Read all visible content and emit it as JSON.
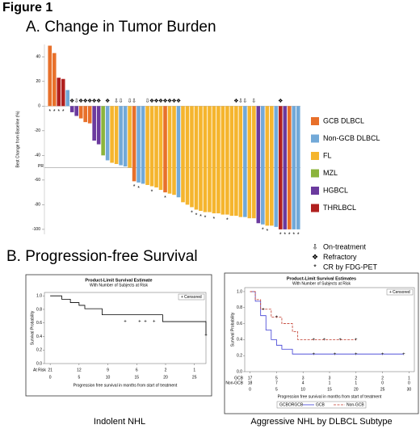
{
  "page": {
    "figure_label": "Figure 1",
    "panel_a": "A. Change in Tumor Burden",
    "panel_b": "B. Progression-free Survival"
  },
  "chart_data": [
    {
      "type": "waterfall",
      "ylabel": "Best Change from Baseline (%)",
      "ylim": [
        -104,
        50
      ],
      "yticks": [
        -100,
        -80,
        -60,
        -40,
        -20,
        0,
        20,
        40
      ],
      "reference_line": {
        "value": -50,
        "label": "PR"
      },
      "legend": [
        {
          "name": "GCB DLBCL",
          "color": "#e8702a"
        },
        {
          "name": "Non-GCB DLBCL",
          "color": "#72a9d8"
        },
        {
          "name": "FL",
          "color": "#f5b52e"
        },
        {
          "name": "MZL",
          "color": "#8cb43c"
        },
        {
          "name": "HGBCL",
          "color": "#6b3a9e"
        },
        {
          "name": "THRLBCL",
          "color": "#b0201f"
        }
      ],
      "marker_types": [
        {
          "name": "On-treatment",
          "symbol": "⇩",
          "color": "#000000"
        },
        {
          "name": "Refractory",
          "symbol": "❖",
          "color": "#000000"
        },
        {
          "name": "CR by FDG-PET",
          "symbol": "*",
          "color": "#d0201c"
        }
      ],
      "values": [
        49,
        43,
        23,
        22,
        13,
        -5,
        -8,
        -10,
        -13,
        -14,
        -28,
        -31,
        -40,
        -44,
        -46,
        -47,
        -48,
        -49,
        -50,
        -61,
        -62,
        -63,
        -64,
        -65,
        -66,
        -68,
        -70,
        -71,
        -72,
        -74,
        -78,
        -80,
        -82,
        -84,
        -85,
        -86,
        -86,
        -87,
        -87,
        -88,
        -88,
        -89,
        -89,
        -90,
        -90,
        -91,
        -91,
        -95,
        -96,
        -97,
        -97,
        -98,
        -100,
        -100,
        -100,
        -100,
        -100
      ],
      "subtypes": [
        "GCB DLBCL",
        "GCB DLBCL",
        "THRLBCL",
        "THRLBCL",
        "Non-GCB DLBCL",
        "HGBCL",
        "HGBCL",
        "GCB DLBCL",
        "GCB DLBCL",
        "GCB DLBCL",
        "HGBCL",
        "HGBCL",
        "MZL",
        "Non-GCB DLBCL",
        "FL",
        "FL",
        "Non-GCB DLBCL",
        "Non-GCB DLBCL",
        "FL",
        "GCB DLBCL",
        "Non-GCB DLBCL",
        "Non-GCB DLBCL",
        "FL",
        "FL",
        "FL",
        "FL",
        "GCB DLBCL",
        "FL",
        "FL",
        "Non-GCB DLBCL",
        "FL",
        "FL",
        "FL",
        "FL",
        "FL",
        "FL",
        "FL",
        "FL",
        "FL",
        "FL",
        "FL",
        "FL",
        "FL",
        "FL",
        "Non-GCB DLBCL",
        "FL",
        "FL",
        "HGBCL",
        "Non-GCB DLBCL",
        "FL",
        "FL",
        "Non-GCB DLBCL",
        "THRLBCL",
        "HGBCL",
        "GCB DLBCL",
        "Non-GCB DLBCL",
        "Non-GCB DLBCL"
      ],
      "markers": [
        [
          "CR by FDG-PET"
        ],
        [
          "CR by FDG-PET"
        ],
        [
          "CR by FDG-PET"
        ],
        [
          "CR by FDG-PET"
        ],
        [],
        [
          "Refractory"
        ],
        [
          "On-treatment"
        ],
        [
          "Refractory"
        ],
        [
          "Refractory"
        ],
        [
          "Refractory"
        ],
        [
          "Refractory"
        ],
        [
          "Refractory"
        ],
        [],
        [
          "Refractory"
        ],
        [],
        [
          "On-treatment"
        ],
        [
          "On-treatment"
        ],
        [],
        [
          "On-treatment"
        ],
        [
          "On-treatment",
          "CR by FDG-PET"
        ],
        [
          "CR by FDG-PET"
        ],
        [],
        [
          "On-treatment"
        ],
        [
          "Refractory",
          "CR by FDG-PET"
        ],
        [
          "Refractory"
        ],
        [
          "Refractory"
        ],
        [
          "Refractory",
          "CR by FDG-PET"
        ],
        [
          "Refractory"
        ],
        [
          "Refractory"
        ],
        [
          "Refractory"
        ],
        [],
        [],
        [
          "CR by FDG-PET"
        ],
        [
          "CR by FDG-PET"
        ],
        [
          "CR by FDG-PET"
        ],
        [
          "CR by FDG-PET"
        ],
        [],
        [
          "CR by FDG-PET"
        ],
        [],
        [],
        [
          "CR by FDG-PET"
        ],
        [],
        [
          "Refractory"
        ],
        [
          "On-treatment"
        ],
        [
          "On-treatment"
        ],
        [],
        [
          "On-treatment"
        ],
        [],
        [
          "CR by FDG-PET"
        ],
        [
          "CR by FDG-PET"
        ],
        [],
        [],
        [
          "Refractory",
          "CR by FDG-PET"
        ],
        [
          "CR by FDG-PET"
        ],
        [
          "CR by FDG-PET"
        ],
        [
          "CR by FDG-PET"
        ],
        [
          "CR by FDG-PET"
        ]
      ]
    },
    {
      "type": "km",
      "title": "Product-Limit Survival Estimate",
      "subtitle": "With Number of Subjects at Risk",
      "ylabel": "Survival Probability",
      "xlabel": "Progression free survival in months from start of treatment",
      "caption": "Indolent NHL",
      "xlim": [
        -1,
        27
      ],
      "xticks": [
        0,
        5,
        10,
        15,
        20,
        25
      ],
      "ylim": [
        0,
        1.05
      ],
      "yticks": [
        {
          "value": 0,
          "label": "0.0"
        },
        0.2,
        0.4,
        0.6,
        0.8,
        {
          "value": 1,
          "label": "1.0"
        }
      ],
      "censor_legend": "Censored",
      "series": [
        {
          "name": null,
          "color": "#000000",
          "dash": false,
          "x": [
            0,
            2,
            3.5,
            5,
            6,
            9,
            19.5,
            27
          ],
          "values": [
            1,
            0.95,
            0.9,
            0.86,
            0.81,
            0.72,
            0.62,
            0.42
          ],
          "censor_x": [
            13,
            15.5,
            16.5,
            18,
            27
          ],
          "censor_y": [
            0.62,
            0.62,
            0.62,
            0.62,
            0.42
          ]
        }
      ],
      "at_risk": {
        "label": "At Risk",
        "x": [
          0,
          5,
          10,
          15,
          20,
          25
        ],
        "rows": [
          {
            "name": null,
            "color": "#000000",
            "counts": [
              21,
              12,
              9,
              6,
              2,
              1
            ]
          }
        ]
      }
    },
    {
      "type": "km",
      "title": "Product-Limit Survival Estimates",
      "subtitle": "With Number of Subjects at Risk",
      "ylabel": "Survival Probability",
      "xlabel": "Progression free survival in months from start of treatment",
      "caption": "Aggressive NHL by DLBCL Subtype",
      "xlim": [
        -1,
        31
      ],
      "xticks": [
        0,
        5,
        10,
        15,
        20,
        25,
        30
      ],
      "ylim": [
        0,
        1.05
      ],
      "yticks": [
        {
          "value": 0,
          "label": "0.0"
        },
        0.2,
        0.4,
        0.6,
        0.8,
        {
          "value": 1,
          "label": "1.0"
        }
      ],
      "censor_legend": "Censored",
      "legend_title": "GCBORGCB",
      "series": [
        {
          "name": "GCB",
          "color": "#3b3bd4",
          "dash": false,
          "x": [
            0,
            1,
            2,
            3,
            4,
            5,
            6,
            8,
            29
          ],
          "values": [
            1,
            0.88,
            0.7,
            0.52,
            0.4,
            0.33,
            0.28,
            0.22,
            0.22
          ],
          "censor_x": [
            12,
            16,
            20,
            25,
            29
          ],
          "censor_y": [
            0.22,
            0.22,
            0.22,
            0.22,
            0.22
          ]
        },
        {
          "name": "Non-GCB",
          "color": "#c0392b",
          "dash": true,
          "x": [
            0,
            1,
            2,
            4,
            6,
            8,
            9,
            20
          ],
          "values": [
            1,
            0.9,
            0.78,
            0.68,
            0.6,
            0.5,
            0.4,
            0.4
          ],
          "censor_x": [
            2.5,
            5,
            12,
            14,
            17,
            20
          ],
          "censor_y": [
            0.78,
            0.68,
            0.4,
            0.4,
            0.4,
            0.4
          ]
        }
      ],
      "at_risk": {
        "label": null,
        "x": [
          0,
          5,
          10,
          15,
          20,
          25,
          30
        ],
        "rows": [
          {
            "name": "GCB",
            "color": "#3b3bd4",
            "counts": [
              17,
              5,
              3,
              3,
              2,
              2,
              1
            ]
          },
          {
            "name": "Non-GCB",
            "color": "#c0392b",
            "counts": [
              18,
              7,
              4,
              1,
              1,
              0,
              0
            ]
          }
        ]
      }
    }
  ]
}
